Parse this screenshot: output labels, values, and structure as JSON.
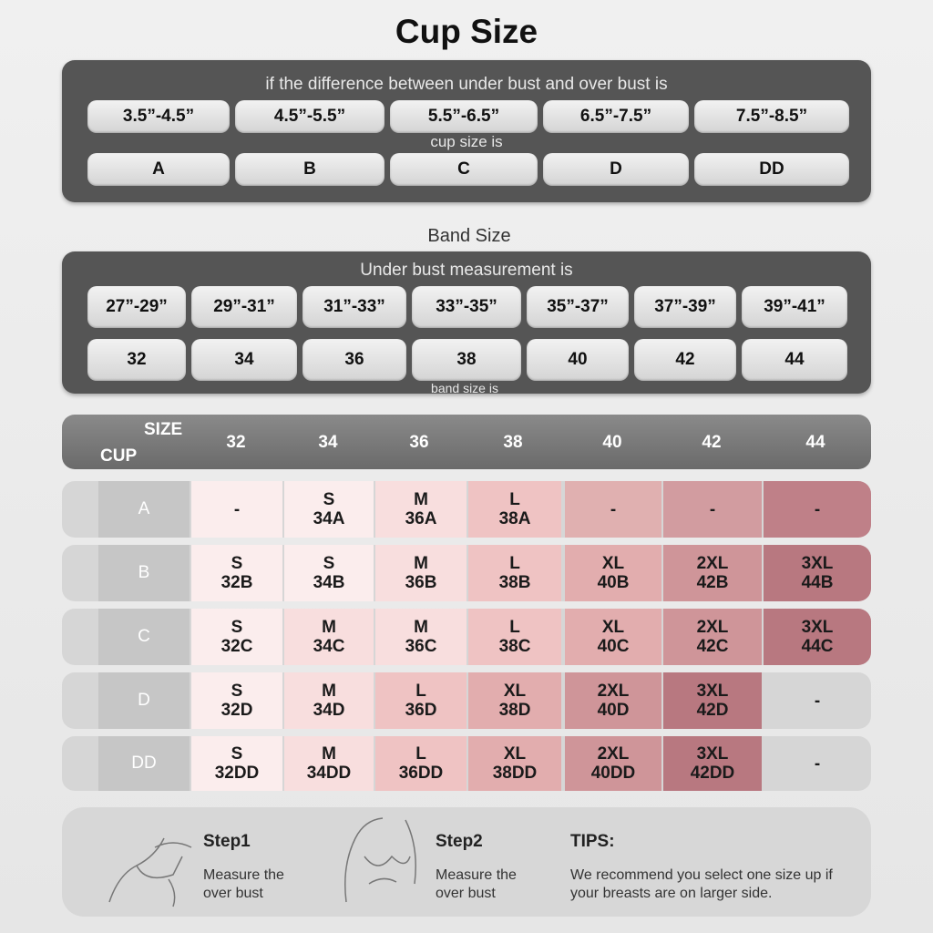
{
  "title": "Cup Size",
  "cup_panel": {
    "heading": "if the difference between under bust and over bust is",
    "ranges": [
      "3.5”-4.5”",
      "4.5”-5.5”",
      "5.5”-6.5”",
      "6.5”-7.5”",
      "7.5”-8.5”"
    ],
    "subheading": "cup size is",
    "cups": [
      "A",
      "B",
      "C",
      "D",
      "DD"
    ]
  },
  "band_title": "Band Size",
  "band_panel": {
    "heading": "Under bust measurement is",
    "ranges": [
      "27”-29”",
      "29”-31”",
      "31”-33”",
      "33”-35”",
      "35”-37”",
      "37”-39”",
      "39”-41”"
    ],
    "bands": [
      "32",
      "34",
      "36",
      "38",
      "40",
      "42",
      "44"
    ],
    "footnote": "band size is"
  },
  "table": {
    "corner_top": "SIZE",
    "corner_bottom": "CUP",
    "columns": [
      "32",
      "34",
      "36",
      "38",
      "40",
      "42",
      "44"
    ],
    "rows": [
      {
        "cup": "A",
        "cells": [
          [
            "-"
          ],
          [
            "S",
            "34A"
          ],
          [
            "M",
            "36A"
          ],
          [
            "L",
            "38A"
          ],
          [
            "-"
          ],
          [
            "-"
          ],
          [
            "-"
          ]
        ]
      },
      {
        "cup": "B",
        "cells": [
          [
            "S",
            "32B"
          ],
          [
            "S",
            "34B"
          ],
          [
            "M",
            "36B"
          ],
          [
            "L",
            "38B"
          ],
          [
            "XL",
            "40B"
          ],
          [
            "2XL",
            "42B"
          ],
          [
            "3XL",
            "44B"
          ]
        ]
      },
      {
        "cup": "C",
        "cells": [
          [
            "S",
            "32C"
          ],
          [
            "M",
            "34C"
          ],
          [
            "M",
            "36C"
          ],
          [
            "L",
            "38C"
          ],
          [
            "XL",
            "40C"
          ],
          [
            "2XL",
            "42C"
          ],
          [
            "3XL",
            "44C"
          ]
        ]
      },
      {
        "cup": "D",
        "cells": [
          [
            "S",
            "32D"
          ],
          [
            "M",
            "34D"
          ],
          [
            "L",
            "36D"
          ],
          [
            "XL",
            "38D"
          ],
          [
            "2XL",
            "40D"
          ],
          [
            "3XL",
            "42D"
          ],
          [
            "-"
          ]
        ]
      },
      {
        "cup": "DD",
        "cells": [
          [
            "S",
            "32DD"
          ],
          [
            "M",
            "34DD"
          ],
          [
            "L",
            "36DD"
          ],
          [
            "XL",
            "38DD"
          ],
          [
            "2XL",
            "40DD"
          ],
          [
            "3XL",
            "42DD"
          ],
          [
            "-"
          ]
        ]
      }
    ]
  },
  "steps": [
    {
      "title": "Step1",
      "text": "Measure the over bust"
    },
    {
      "title": "Step2",
      "text": "Measure the over bust"
    }
  ],
  "tips": {
    "title": "TIPS:",
    "text": "We recommend you select one size up if your breasts are on larger side."
  }
}
